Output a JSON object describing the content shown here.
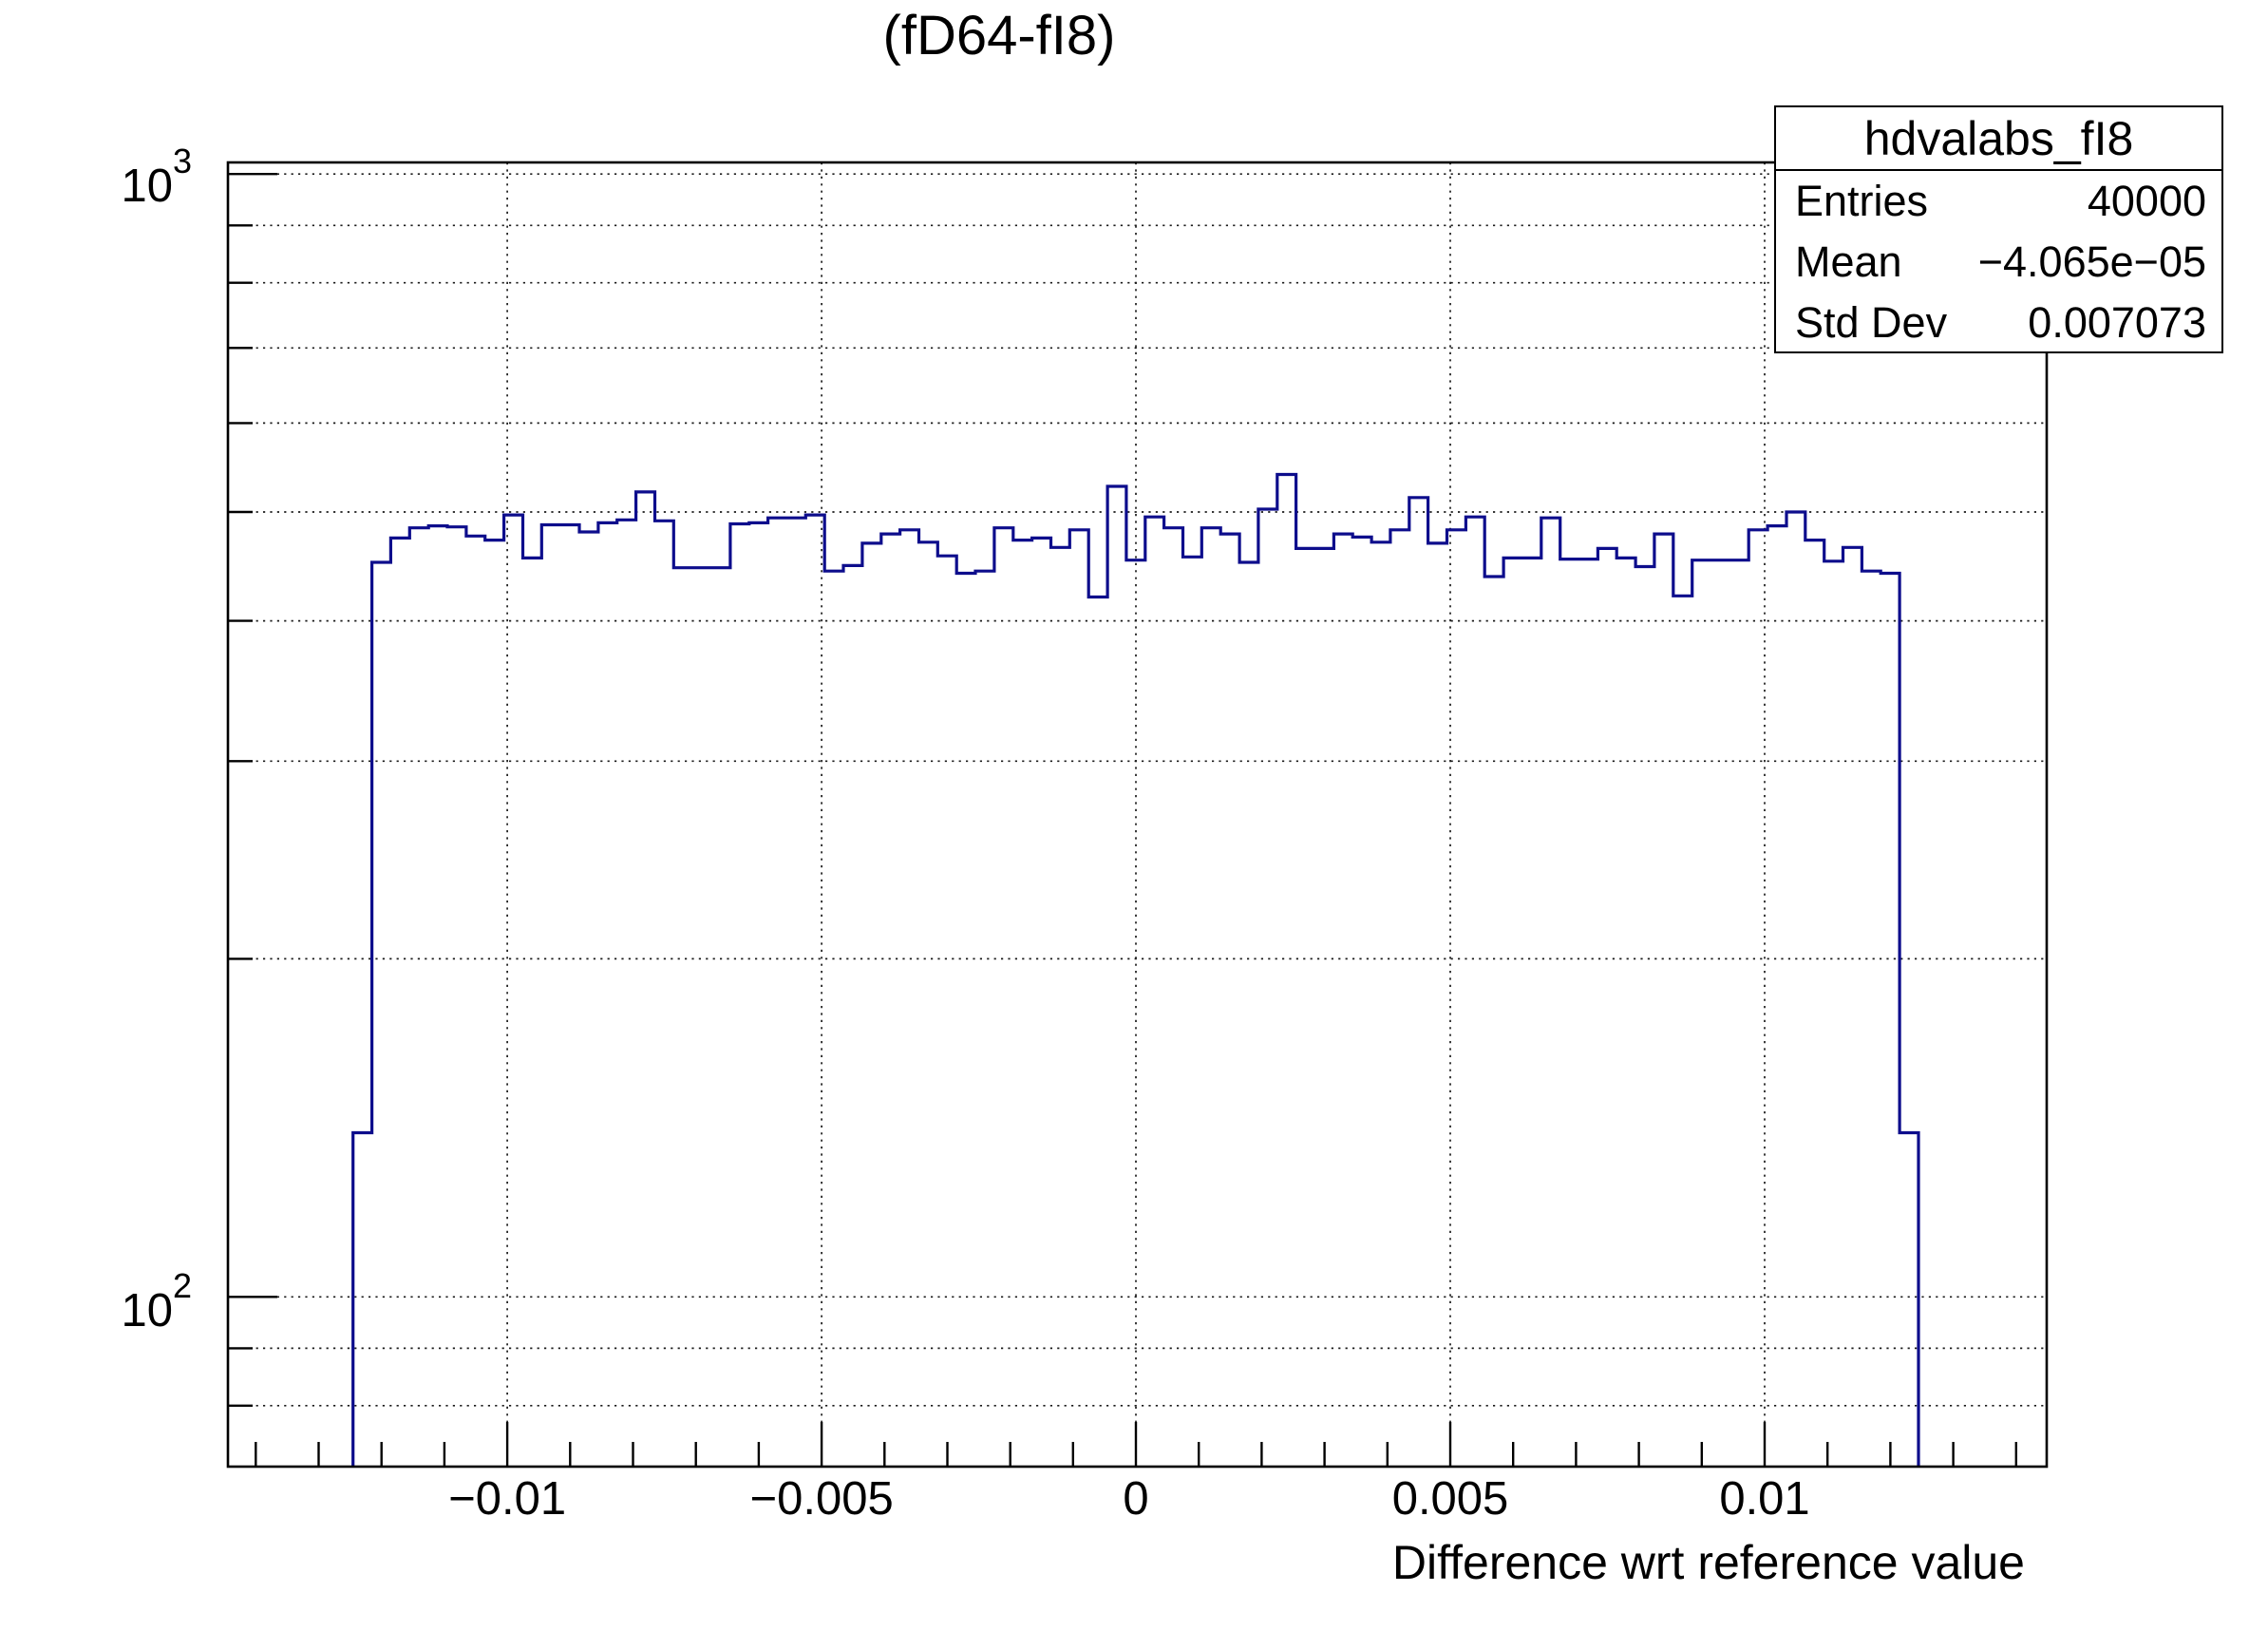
{
  "page": {
    "background_color": "#ffffff"
  },
  "title": "(fD64-fI8)",
  "stats_box": {
    "title": "hdvalabs_fI8",
    "rows": [
      {
        "label": "Entries",
        "value": "40000"
      },
      {
        "label": "Mean",
        "value": "−4.065e−05"
      },
      {
        "label": "Std Dev",
        "value": "0.007073"
      }
    ]
  },
  "chart_data": {
    "type": "bar",
    "subtype": "step-histogram",
    "title": "(fD64-fI8)",
    "xlabel": "Difference wrt reference value",
    "ylabel": "",
    "legend_position": "none",
    "grid": {
      "x_major_dotted": true,
      "y_all_dotted": true
    },
    "yscale": "log",
    "xlim": [
      -0.014443,
      0.014487
    ],
    "ylim": [
      70.6,
      1024
    ],
    "x_major_ticks": [
      -0.01,
      -0.005,
      0,
      0.005,
      0.01
    ],
    "x_major_labels": [
      "−0.01",
      "−0.005",
      "0",
      "0.005",
      "0.01"
    ],
    "x_minor_step": 0.001,
    "x_minor_range": [
      -0.014,
      0.014
    ],
    "y_major_ticks": [
      100,
      1000
    ],
    "y_major_labels": [
      {
        "text": "10",
        "exp": "2"
      },
      {
        "text": "10",
        "exp": "3"
      }
    ],
    "y_minor_ticks": [
      80,
      90,
      200,
      300,
      400,
      500,
      600,
      700,
      800,
      900
    ],
    "y_gridlines": [
      1000,
      900,
      800,
      700,
      600,
      500,
      400,
      300,
      200,
      100,
      90,
      80
    ],
    "colors": {
      "hist_line": "#0d0d8c",
      "frame": "#000000",
      "grid": "#1a1a1a",
      "text": "#000000"
    },
    "bins": {
      "first_edge": -0.012453,
      "width": 0.0003,
      "values": [
        140,
        451,
        474,
        484,
        486,
        485,
        476,
        472,
        497,
        455,
        487,
        487,
        480,
        489,
        492,
        521,
        491,
        446,
        446,
        446,
        488,
        489,
        494,
        494,
        497,
        443,
        448,
        469,
        478,
        482,
        470,
        457,
        441,
        443,
        484,
        472,
        474,
        465,
        482,
        420,
        527,
        453,
        495,
        484,
        456,
        484,
        478,
        451,
        503,
        540,
        464,
        464,
        478,
        475,
        470,
        482,
        515,
        469,
        482,
        495,
        438,
        455,
        455,
        494,
        454,
        454,
        464,
        455,
        447,
        478,
        421,
        453,
        453,
        453,
        482,
        486,
        500,
        472,
        452,
        465,
        443,
        441,
        140
      ]
    }
  }
}
